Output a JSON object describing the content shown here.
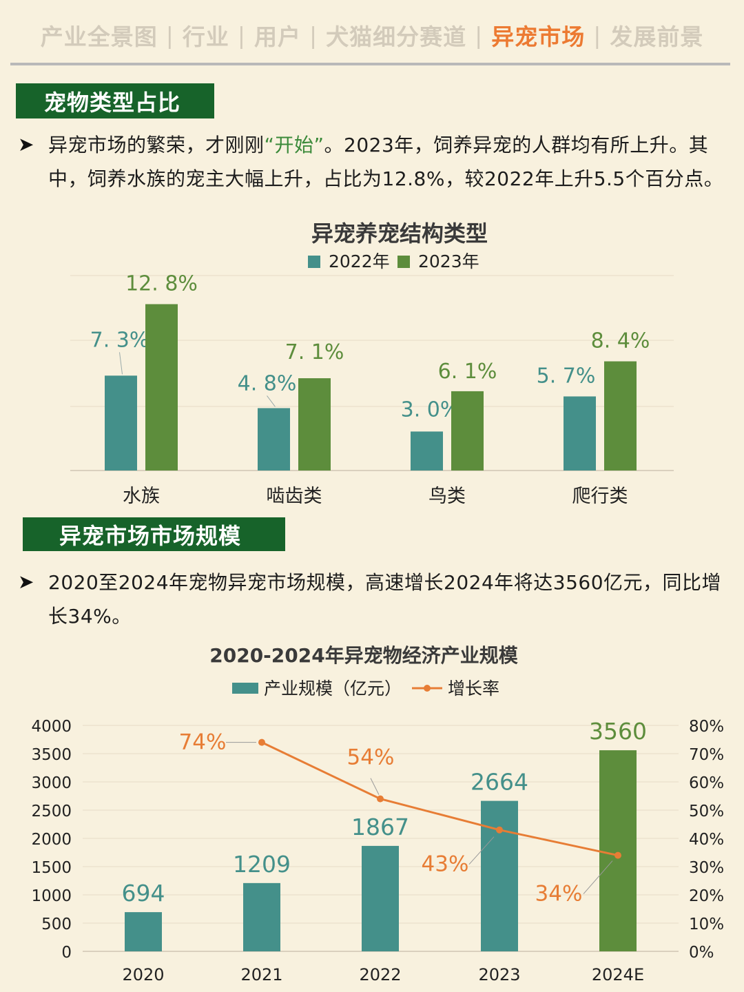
{
  "nav": {
    "items": [
      {
        "label": "产业全景图",
        "active": false
      },
      {
        "label": "行业",
        "active": false
      },
      {
        "label": "用户",
        "active": false
      },
      {
        "label": "犬猫细分赛道",
        "active": false
      },
      {
        "label": "异宠市场",
        "active": true
      },
      {
        "label": "发展前景",
        "active": false
      }
    ],
    "separator": "|"
  },
  "section1": {
    "header": "宠物类型占比",
    "bullet": "➤",
    "text_before": "异宠市场的繁荣，才刚刚",
    "text_highlight": "“开始”",
    "text_after": "。2023年，饲养异宠的人群均有所上升。其中，饲养水族的宠主大幅上升，占比为12.8%，较2022年上升5.5个百分点。"
  },
  "section2": {
    "header": "异宠市场市场规模",
    "bullet": "➤",
    "text": "2020至2024年宠物异宠市场规模，高速增长2024年将达3560亿元，同比增长34%。"
  },
  "colors": {
    "teal": "#44908a",
    "green": "#5d8d3c",
    "orange": "#e77d35",
    "header_bg": "#17632a",
    "nav_active": "#ec7a32"
  },
  "chart_data": [
    {
      "type": "bar",
      "title": "异宠养宠结构类型",
      "categories": [
        "水族",
        "啮齿类",
        "鸟类",
        "爬行类"
      ],
      "series": [
        {
          "name": "2022年",
          "values": [
            7.3,
            4.8,
            3.0,
            5.7
          ],
          "labels": [
            "7. 3%",
            "4. 8%",
            "3. 0%",
            "5. 7%"
          ],
          "color": "#44908a"
        },
        {
          "name": "2023年",
          "values": [
            12.8,
            7.1,
            6.1,
            8.4
          ],
          "labels": [
            "12. 8%",
            "7. 1%",
            "6. 1%",
            "8. 4%"
          ],
          "color": "#5d8d3c"
        }
      ],
      "unit": "%",
      "ylim": [
        0,
        15
      ],
      "legend": "top",
      "grid": true
    },
    {
      "type": "bar",
      "title": "2020-2024年异宠物经济产业规模",
      "categories": [
        "2020",
        "2021",
        "2022",
        "2023",
        "2024E"
      ],
      "series": [
        {
          "name": "产业规模（亿元）",
          "type": "bar",
          "values": [
            694,
            1209,
            1867,
            2664,
            3560
          ],
          "labels": [
            "694",
            "1209",
            "1867",
            "2664",
            "3560"
          ],
          "colors": [
            "#44908a",
            "#44908a",
            "#44908a",
            "#44908a",
            "#5d8d3c"
          ]
        },
        {
          "name": "增长率",
          "type": "line",
          "x": [
            "2021",
            "2022",
            "2023",
            "2024E"
          ],
          "values": [
            74,
            54,
            43,
            34
          ],
          "labels": [
            "74%",
            "54%",
            "43%",
            "34%"
          ],
          "color": "#e77d35"
        }
      ],
      "y_left": {
        "range": [
          0,
          4000
        ],
        "ticks": [
          "0",
          "500",
          "1000",
          "1500",
          "2000",
          "2500",
          "3000",
          "3500",
          "4000"
        ]
      },
      "y_right": {
        "range": [
          0,
          80
        ],
        "ticks": [
          "0%",
          "10%",
          "20%",
          "30%",
          "40%",
          "50%",
          "60%",
          "70%",
          "80%"
        ]
      },
      "legend": "top",
      "grid": true
    }
  ]
}
